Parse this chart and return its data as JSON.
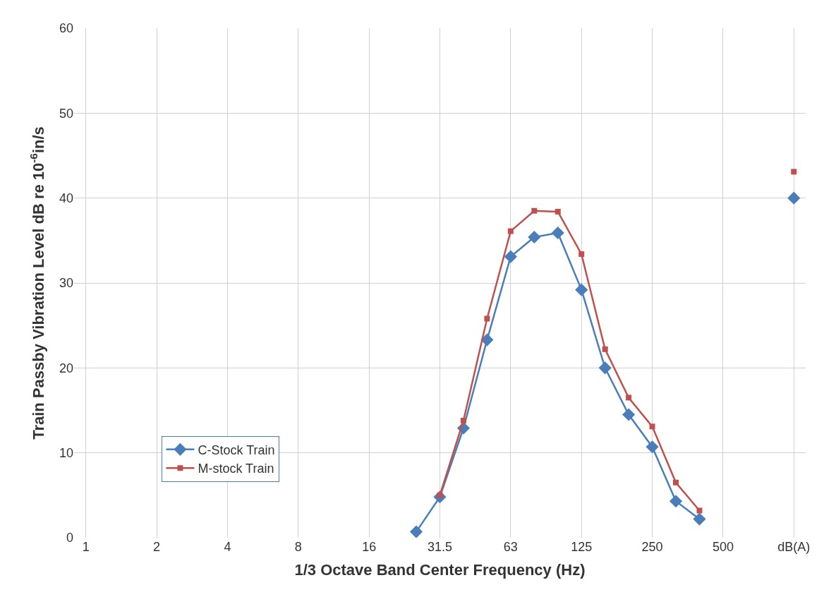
{
  "chart_data": {
    "type": "line",
    "xlabel": "1/3 Octave Band Center Frequency (Hz)",
    "ylabel": "Train Passby Vibration Level dB re 10$^{-6}$in/s",
    "categories": [
      "1",
      null,
      null,
      "2",
      null,
      null,
      "4",
      null,
      null,
      "8",
      null,
      null,
      "16",
      null,
      null,
      "31.5",
      null,
      null,
      "63",
      null,
      null,
      "125",
      null,
      null,
      "250",
      null,
      null,
      "500",
      null,
      null,
      "dB(A)"
    ],
    "series": [
      {
        "name": "C-Stock Train",
        "color": "#4a7ebb",
        "marker": "diamond",
        "values": [
          null,
          null,
          null,
          null,
          null,
          null,
          null,
          null,
          null,
          null,
          null,
          null,
          null,
          null,
          0.7,
          4.8,
          12.9,
          23.3,
          33.1,
          35.4,
          35.9,
          29.2,
          20.0,
          14.5,
          10.7,
          4.3,
          2.2,
          null,
          null,
          null,
          40.0
        ]
      },
      {
        "name": "M-stock Train",
        "color": "#c0504d",
        "marker": "square",
        "values": [
          null,
          null,
          null,
          null,
          null,
          null,
          null,
          null,
          null,
          null,
          null,
          null,
          null,
          null,
          null,
          5.0,
          13.8,
          25.8,
          36.1,
          38.5,
          38.4,
          33.4,
          22.2,
          16.5,
          13.1,
          6.5,
          3.2,
          null,
          null,
          null,
          43.1
        ]
      }
    ],
    "ylim": [
      0,
      60
    ],
    "yticks": [
      0,
      10,
      20,
      30,
      40,
      50,
      60
    ],
    "grid": true,
    "legend": "bottom left",
    "line_style": "solid"
  }
}
